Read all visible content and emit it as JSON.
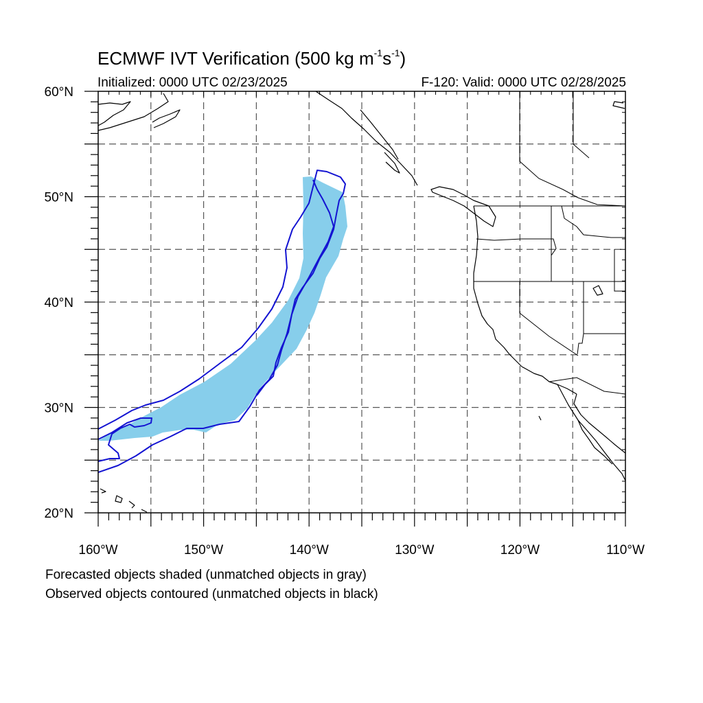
{
  "figure": {
    "title_main": "ECMWF IVT Verification (500 kg m",
    "title_sup1": "-1",
    "title_mid": "s",
    "title_sup2": "-1",
    "title_end": ")",
    "initialized": "Initialized: 0000 UTC 02/23/2025",
    "valid": "F-120: Valid: 0000 UTC 02/28/2025",
    "note_forecast": "Forecasted objects shaded (unmatched objects in gray)",
    "note_observed": "Observed objects contoured (unmatched objects in black)"
  },
  "map": {
    "lon_range": [
      -160,
      -110
    ],
    "lat_range": [
      20,
      60
    ],
    "lon_ticks": [
      {
        "value": -160,
        "label": "160°W"
      },
      {
        "value": -150,
        "label": "150°W"
      },
      {
        "value": -140,
        "label": "140°W"
      },
      {
        "value": -130,
        "label": "130°W"
      },
      {
        "value": -120,
        "label": "120°W"
      },
      {
        "value": -110,
        "label": "110°W"
      }
    ],
    "lat_ticks": [
      {
        "value": 20,
        "label": "20°N"
      },
      {
        "value": 30,
        "label": "30°N"
      },
      {
        "value": 40,
        "label": "40°N"
      },
      {
        "value": 50,
        "label": "50°N"
      },
      {
        "value": 60,
        "label": "60°N"
      }
    ],
    "gridlines": "dashed every 5°",
    "colors": {
      "forecast_fill": "#87ceeb",
      "observed_contour": "#1414d2",
      "coastline": "#000000",
      "grid": "#555555"
    }
  }
}
